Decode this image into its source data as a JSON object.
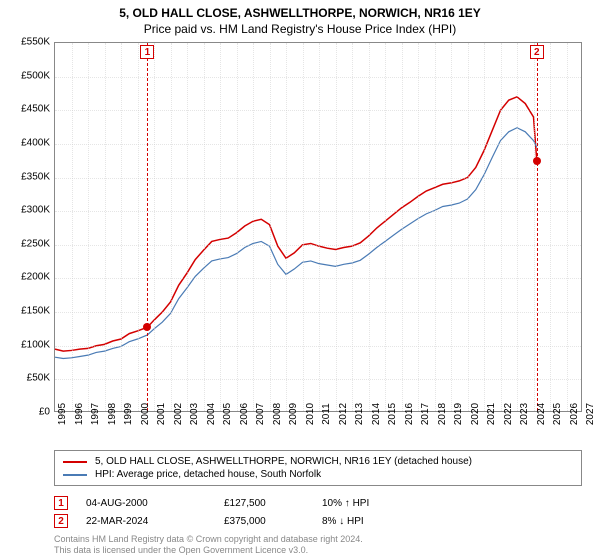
{
  "title": "5, OLD HALL CLOSE, ASHWELLTHORPE, NORWICH, NR16 1EY",
  "subtitle": "Price paid vs. HM Land Registry's House Price Index (HPI)",
  "chart": {
    "type": "line",
    "background_color": "#ffffff",
    "border_color": "#888888",
    "grid_color": "#cccccc",
    "title_fontsize": 12,
    "label_fontsize": 10,
    "xlim": [
      1995,
      2027
    ],
    "ylim": [
      0,
      550000
    ],
    "ytick_step": 50000,
    "yticks": [
      "£0",
      "£50K",
      "£100K",
      "£150K",
      "£200K",
      "£250K",
      "£300K",
      "£350K",
      "£400K",
      "£450K",
      "£500K",
      "£550K"
    ],
    "xticks": [
      1995,
      1996,
      1997,
      1998,
      1999,
      2000,
      2001,
      2002,
      2003,
      2004,
      2005,
      2006,
      2007,
      2008,
      2009,
      2010,
      2011,
      2012,
      2013,
      2014,
      2015,
      2016,
      2017,
      2018,
      2019,
      2020,
      2021,
      2022,
      2023,
      2024,
      2025,
      2026,
      2027
    ],
    "series": [
      {
        "name": "property",
        "label": "5, OLD HALL CLOSE, ASHWELLTHORPE, NORWICH, NR16 1EY (detached house)",
        "color": "#d40000",
        "line_width": 1.5,
        "data": [
          [
            1995.0,
            95000
          ],
          [
            1995.5,
            92000
          ],
          [
            1996.0,
            93000
          ],
          [
            1996.5,
            95000
          ],
          [
            1997.0,
            96000
          ],
          [
            1997.5,
            100000
          ],
          [
            1998.0,
            102000
          ],
          [
            1998.5,
            107000
          ],
          [
            1999.0,
            110000
          ],
          [
            1999.5,
            118000
          ],
          [
            2000.0,
            122000
          ],
          [
            2000.6,
            127500
          ],
          [
            2001.0,
            138000
          ],
          [
            2001.5,
            150000
          ],
          [
            2002.0,
            165000
          ],
          [
            2002.5,
            190000
          ],
          [
            2003.0,
            208000
          ],
          [
            2003.5,
            228000
          ],
          [
            2004.0,
            242000
          ],
          [
            2004.5,
            255000
          ],
          [
            2005.0,
            258000
          ],
          [
            2005.5,
            260000
          ],
          [
            2006.0,
            268000
          ],
          [
            2006.5,
            278000
          ],
          [
            2007.0,
            285000
          ],
          [
            2007.5,
            288000
          ],
          [
            2008.0,
            280000
          ],
          [
            2008.5,
            248000
          ],
          [
            2009.0,
            230000
          ],
          [
            2009.5,
            238000
          ],
          [
            2010.0,
            250000
          ],
          [
            2010.5,
            252000
          ],
          [
            2011.0,
            248000
          ],
          [
            2011.5,
            245000
          ],
          [
            2012.0,
            243000
          ],
          [
            2012.5,
            246000
          ],
          [
            2013.0,
            248000
          ],
          [
            2013.5,
            253000
          ],
          [
            2014.0,
            263000
          ],
          [
            2014.5,
            275000
          ],
          [
            2015.0,
            285000
          ],
          [
            2015.5,
            295000
          ],
          [
            2016.0,
            305000
          ],
          [
            2016.5,
            313000
          ],
          [
            2017.0,
            322000
          ],
          [
            2017.5,
            330000
          ],
          [
            2018.0,
            335000
          ],
          [
            2018.5,
            340000
          ],
          [
            2019.0,
            342000
          ],
          [
            2019.5,
            345000
          ],
          [
            2020.0,
            350000
          ],
          [
            2020.5,
            365000
          ],
          [
            2021.0,
            390000
          ],
          [
            2021.5,
            420000
          ],
          [
            2022.0,
            450000
          ],
          [
            2022.5,
            465000
          ],
          [
            2023.0,
            470000
          ],
          [
            2023.5,
            460000
          ],
          [
            2024.0,
            440000
          ],
          [
            2024.2,
            375000
          ]
        ]
      },
      {
        "name": "hpi",
        "label": "HPI: Average price, detached house, South Norfolk",
        "color": "#4a7bb5",
        "line_width": 1.2,
        "data": [
          [
            1995.0,
            83000
          ],
          [
            1995.5,
            81000
          ],
          [
            1996.0,
            82000
          ],
          [
            1996.5,
            84000
          ],
          [
            1997.0,
            86000
          ],
          [
            1997.5,
            90000
          ],
          [
            1998.0,
            92000
          ],
          [
            1998.5,
            96000
          ],
          [
            1999.0,
            99000
          ],
          [
            1999.5,
            106000
          ],
          [
            2000.0,
            110000
          ],
          [
            2000.6,
            116000
          ],
          [
            2001.0,
            125000
          ],
          [
            2001.5,
            135000
          ],
          [
            2002.0,
            148000
          ],
          [
            2002.5,
            170000
          ],
          [
            2003.0,
            186000
          ],
          [
            2003.5,
            203000
          ],
          [
            2004.0,
            215000
          ],
          [
            2004.5,
            226000
          ],
          [
            2005.0,
            229000
          ],
          [
            2005.5,
            231000
          ],
          [
            2006.0,
            237000
          ],
          [
            2006.5,
            246000
          ],
          [
            2007.0,
            252000
          ],
          [
            2007.5,
            255000
          ],
          [
            2008.0,
            248000
          ],
          [
            2008.5,
            221000
          ],
          [
            2009.0,
            206000
          ],
          [
            2009.5,
            214000
          ],
          [
            2010.0,
            224000
          ],
          [
            2010.5,
            226000
          ],
          [
            2011.0,
            222000
          ],
          [
            2011.5,
            220000
          ],
          [
            2012.0,
            218000
          ],
          [
            2012.5,
            221000
          ],
          [
            2013.0,
            223000
          ],
          [
            2013.5,
            227000
          ],
          [
            2014.0,
            236000
          ],
          [
            2014.5,
            246000
          ],
          [
            2015.0,
            255000
          ],
          [
            2015.5,
            264000
          ],
          [
            2016.0,
            273000
          ],
          [
            2016.5,
            281000
          ],
          [
            2017.0,
            289000
          ],
          [
            2017.5,
            296000
          ],
          [
            2018.0,
            301000
          ],
          [
            2018.5,
            307000
          ],
          [
            2019.0,
            309000
          ],
          [
            2019.5,
            312000
          ],
          [
            2020.0,
            318000
          ],
          [
            2020.5,
            332000
          ],
          [
            2021.0,
            354000
          ],
          [
            2021.5,
            380000
          ],
          [
            2022.0,
            405000
          ],
          [
            2022.5,
            418000
          ],
          [
            2023.0,
            424000
          ],
          [
            2023.5,
            418000
          ],
          [
            2024.0,
            405000
          ],
          [
            2024.2,
            395000
          ]
        ]
      }
    ],
    "markers": [
      {
        "id": "1",
        "x": 2000.6,
        "y": 127500,
        "color": "#d40000"
      },
      {
        "id": "2",
        "x": 2024.2,
        "y": 375000,
        "color": "#d40000"
      }
    ],
    "marker_line_color": "#d40000"
  },
  "legend": {
    "border_color": "#888888"
  },
  "transactions": [
    {
      "id": "1",
      "date": "04-AUG-2000",
      "price": "£127,500",
      "pct": "10% ↑ HPI",
      "color": "#d40000"
    },
    {
      "id": "2",
      "date": "22-MAR-2024",
      "price": "£375,000",
      "pct": "8% ↓ HPI",
      "color": "#d40000"
    }
  ],
  "attribution": {
    "line1": "Contains HM Land Registry data © Crown copyright and database right 2024.",
    "line2": "This data is licensed under the Open Government Licence v3.0.",
    "color": "#888888"
  }
}
